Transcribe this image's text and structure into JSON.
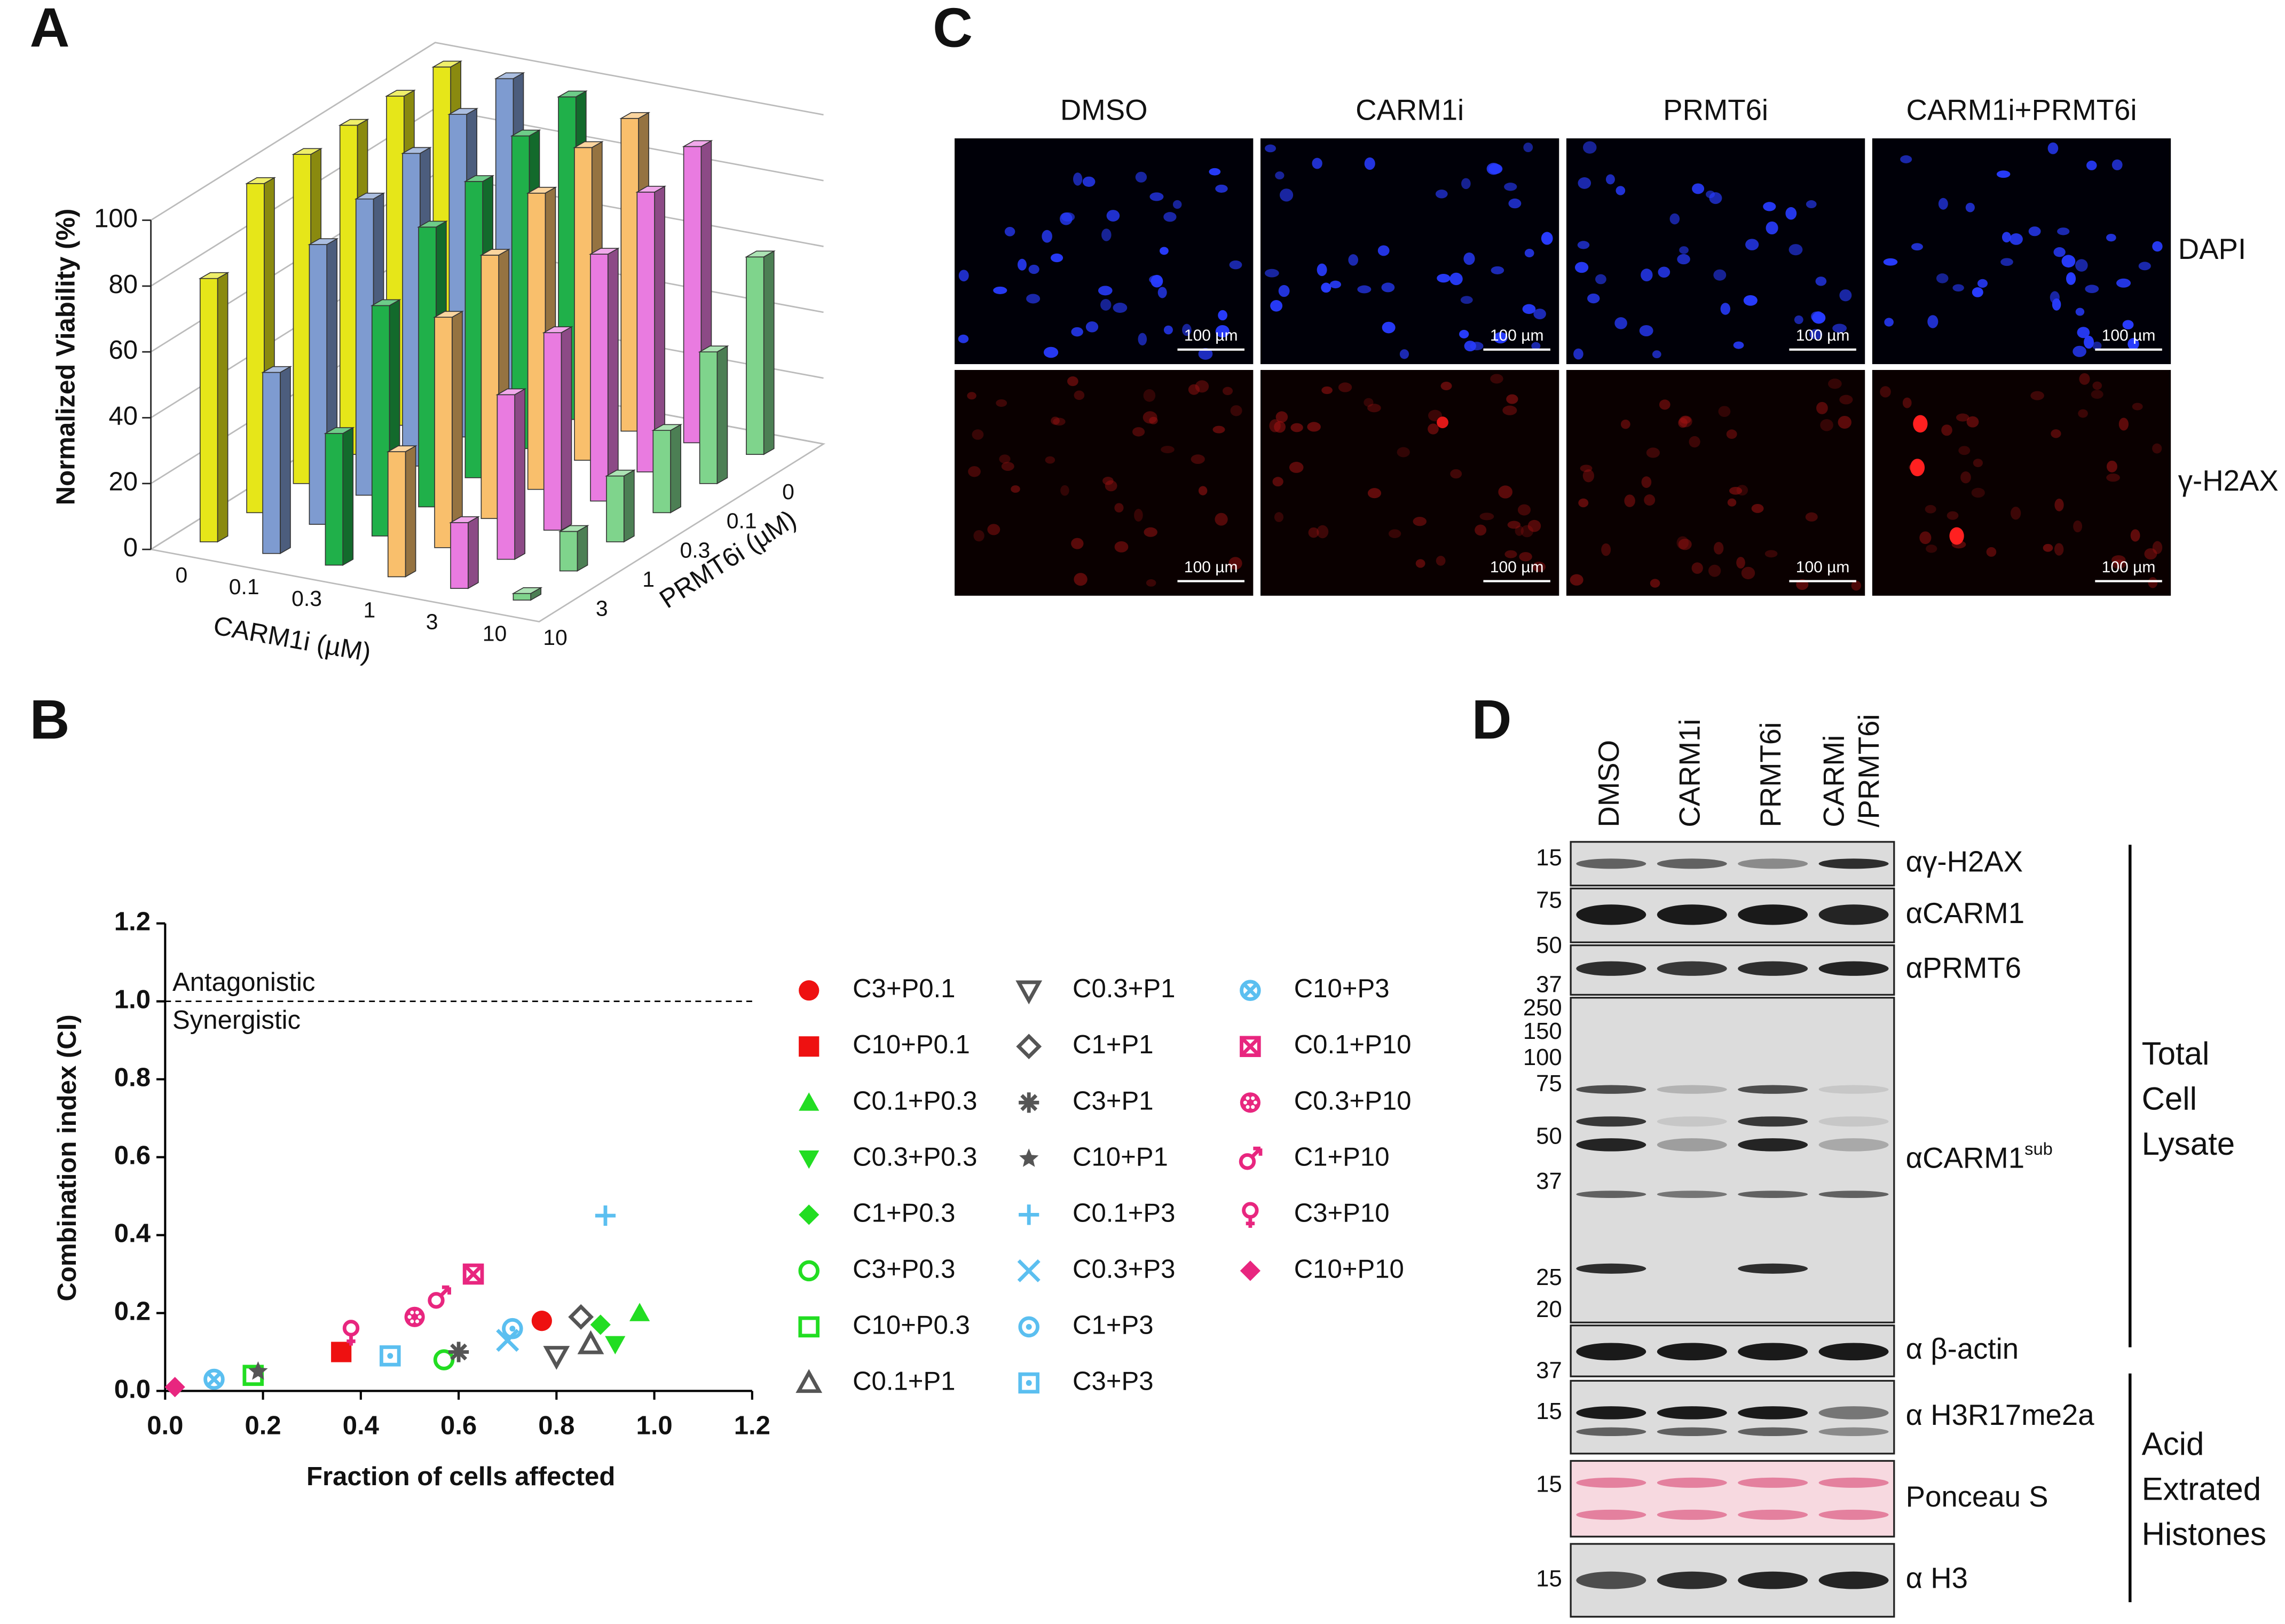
{
  "panel_labels": [
    "A",
    "B",
    "C",
    "D"
  ],
  "chart_data": [
    {
      "type": "bar3d",
      "z_label": "Normalized Viability (%)",
      "x_label": "CARM1i (µM)",
      "y_label": "PRMT6i (µM)",
      "x_categories": [
        "0",
        "0.1",
        "0.3",
        "1",
        "3",
        "10"
      ],
      "y_categories": [
        "0",
        "0.1",
        "0.3",
        "1",
        "3",
        "10"
      ],
      "zlim": [
        0,
        100
      ],
      "zticks": [
        0,
        20,
        40,
        60,
        80,
        100
      ],
      "series": [
        {
          "color": "#e6e619",
          "values": [
            100,
            100,
            100,
            100,
            100,
            80
          ]
        },
        {
          "color": "#7e9bd0",
          "values": [
            100,
            98,
            95,
            90,
            85,
            55
          ]
        },
        {
          "color": "#20b04a",
          "values": [
            98,
            95,
            90,
            85,
            70,
            40
          ]
        },
        {
          "color": "#f9bf6c",
          "values": [
            95,
            95,
            90,
            80,
            70,
            38
          ]
        },
        {
          "color": "#e97be0",
          "values": [
            90,
            85,
            75,
            60,
            50,
            20
          ]
        },
        {
          "color": "#7fd48c",
          "values": [
            60,
            40,
            25,
            20,
            12,
            2
          ]
        }
      ]
    },
    {
      "type": "scatter",
      "x_label": "Fraction of cells affected",
      "y_label": "Combination index (CI)",
      "xlim": [
        0,
        1.2
      ],
      "ylim": [
        0,
        1.2
      ],
      "xticks": [
        {
          "value": 0,
          "label": "0.0"
        },
        {
          "value": 0.2,
          "label": "0.2"
        },
        {
          "value": 0.4,
          "label": "0.4"
        },
        {
          "value": 0.6,
          "label": "0.6"
        },
        {
          "value": 0.8,
          "label": "0.8"
        },
        {
          "value": 1,
          "label": "1.0"
        },
        {
          "value": 1.2,
          "label": "1.2"
        }
      ],
      "yticks": [
        {
          "value": 0,
          "label": "0.0"
        },
        {
          "value": 0.2,
          "label": "0.2"
        },
        {
          "value": 0.4,
          "label": "0.4"
        },
        {
          "value": 0.6,
          "label": "0.6"
        },
        {
          "value": 0.8,
          "label": "0.8"
        },
        {
          "value": 1,
          "label": "1.0"
        },
        {
          "value": 1.2,
          "label": "1.2"
        }
      ],
      "reference_line": 1,
      "annotations": [
        "Antagonistic",
        "Synergistic"
      ],
      "series": [
        {
          "name": "C3+P0.1",
          "color": "#ee1111",
          "marker": "circle",
          "x": [
            0.77
          ],
          "y": [
            0.18
          ]
        },
        {
          "name": "C10+P0.1",
          "color": "#ee1111",
          "marker": "square",
          "x": [
            0.36
          ],
          "y": [
            0.1
          ]
        },
        {
          "name": "C0.1+P0.3",
          "color": "#22dd22",
          "marker": "triangle",
          "x": [
            0.97
          ],
          "y": [
            0.2
          ]
        },
        {
          "name": "C0.3+P0.3",
          "color": "#22dd22",
          "marker": "triangle-down",
          "x": [
            0.92
          ],
          "y": [
            0.12
          ]
        },
        {
          "name": "C1+P0.3",
          "color": "#22dd22",
          "marker": "diamond",
          "x": [
            0.89
          ],
          "y": [
            0.17
          ]
        },
        {
          "name": "C3+P0.3",
          "color": "#22dd22",
          "marker": "circle-open",
          "x": [
            0.57
          ],
          "y": [
            0.08
          ]
        },
        {
          "name": "C10+P0.3",
          "color": "#22dd22",
          "marker": "square-open",
          "x": [
            0.18
          ],
          "y": [
            0.04
          ]
        },
        {
          "name": "C0.1+P1",
          "color": "#555555",
          "marker": "triangle-open",
          "x": [
            0.87
          ],
          "y": [
            0.12
          ]
        },
        {
          "name": "C0.3+P1",
          "color": "#555555",
          "marker": "triangle-down-open",
          "x": [
            0.8
          ],
          "y": [
            0.09
          ]
        },
        {
          "name": "C1+P1",
          "color": "#555555",
          "marker": "diamond-open",
          "x": [
            0.85
          ],
          "y": [
            0.19
          ]
        },
        {
          "name": "C3+P1",
          "color": "#555555",
          "marker": "asterisk",
          "x": [
            0.6
          ],
          "y": [
            0.1
          ]
        },
        {
          "name": "C10+P1",
          "color": "#555555",
          "marker": "star",
          "x": [
            0.19
          ],
          "y": [
            0.05
          ]
        },
        {
          "name": "C0.1+P3",
          "color": "#5bbff0",
          "marker": "plus",
          "x": [
            0.9
          ],
          "y": [
            0.45
          ]
        },
        {
          "name": "C0.3+P3",
          "color": "#5bbff0",
          "marker": "cross",
          "x": [
            0.7
          ],
          "y": [
            0.13
          ]
        },
        {
          "name": "C1+P3",
          "color": "#5bbff0",
          "marker": "circle-dot",
          "x": [
            0.71
          ],
          "y": [
            0.16
          ]
        },
        {
          "name": "C3+P3",
          "color": "#5bbff0",
          "marker": "square-dot",
          "x": [
            0.46
          ],
          "y": [
            0.09
          ]
        },
        {
          "name": "C10+P3",
          "color": "#5bbff0",
          "marker": "circle-cross",
          "x": [
            0.1
          ],
          "y": [
            0.03
          ]
        },
        {
          "name": "C0.1+P10",
          "color": "#e8267f",
          "marker": "square-cross",
          "x": [
            0.63
          ],
          "y": [
            0.3
          ]
        },
        {
          "name": "C0.3+P10",
          "color": "#e8267f",
          "marker": "flower",
          "x": [
            0.51
          ],
          "y": [
            0.19
          ]
        },
        {
          "name": "C1+P10",
          "color": "#e8267f",
          "marker": "male",
          "x": [
            0.56
          ],
          "y": [
            0.24
          ]
        },
        {
          "name": "C3+P10",
          "color": "#e8267f",
          "marker": "female",
          "x": [
            0.38
          ],
          "y": [
            0.15
          ]
        },
        {
          "name": "C10+P10",
          "color": "#e8267f",
          "marker": "diamond-half",
          "x": [
            0.02
          ],
          "y": [
            0.01
          ]
        }
      ]
    }
  ],
  "panel_c": {
    "columns": [
      "DMSO",
      "CARM1i",
      "PRMT6i",
      "CARM1i+PRMT6i"
    ],
    "rows": [
      "DAPI",
      "γ-H2AX"
    ],
    "scale_bar": "100 µm"
  },
  "panel_d": {
    "lanes": [
      [
        "DMSO"
      ],
      [
        "CARM1i"
      ],
      [
        "PRMT6i"
      ],
      [
        "CARMi",
        "/PRMT6i"
      ]
    ],
    "blots": [
      {
        "label": "αγ-H2AX",
        "markers": [
          "15"
        ]
      },
      {
        "label": "αCARM1",
        "markers": [
          "75"
        ]
      },
      {
        "label": "αPRMT6",
        "markers": [
          "50",
          "37"
        ]
      },
      {
        "label": "αCARM1",
        "sup": "sub",
        "markers": [
          "250",
          "150",
          "100",
          "75",
          "50",
          "37",
          "25",
          "20"
        ]
      },
      {
        "label": "α β-actin",
        "markers": [
          "37"
        ]
      },
      {
        "label": "α H3R17me2a",
        "markers": [
          "15"
        ]
      },
      {
        "label": "Ponceau S",
        "markers": [
          "15"
        ]
      },
      {
        "label": "α H3",
        "markers": [
          "15"
        ]
      }
    ],
    "groups": [
      [
        "Total",
        "Cell",
        "Lysate"
      ],
      [
        "Acid",
        "Extrated",
        "Histones"
      ]
    ]
  }
}
